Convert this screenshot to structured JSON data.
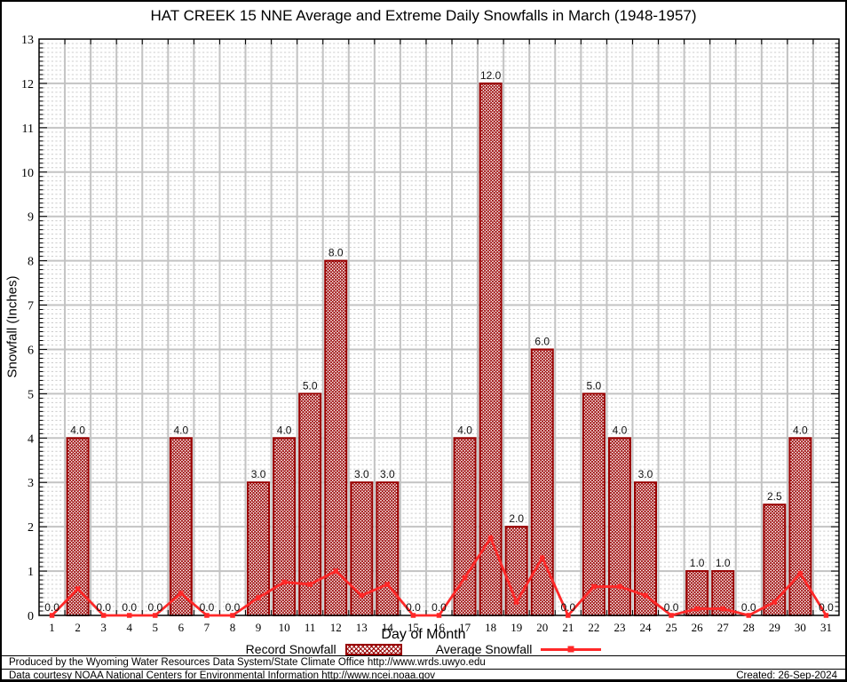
{
  "title": "HAT CREEK 15 NNE Average and Extreme Daily Snowfalls in March (1948-1957)",
  "chart_data": {
    "type": "bar",
    "title": "HAT CREEK 15 NNE Average and Extreme Daily Snowfalls in March (1948-1957)",
    "xlabel": "Day of Month",
    "ylabel": "Snowfall (Inches)",
    "ylim": [
      0,
      13
    ],
    "ytick_step": 1,
    "minor_step": 0.1,
    "grid": true,
    "legend_position": "bottom",
    "categories": [
      1,
      2,
      3,
      4,
      5,
      6,
      7,
      8,
      9,
      10,
      11,
      12,
      13,
      14,
      15,
      16,
      17,
      18,
      19,
      20,
      21,
      22,
      23,
      24,
      25,
      26,
      27,
      28,
      29,
      30,
      31
    ],
    "series": [
      {
        "name": "Record Snowfall",
        "type": "bar",
        "values": [
          0.0,
          4.0,
          0.0,
          0.0,
          0.0,
          4.0,
          0.0,
          0.0,
          3.0,
          4.0,
          5.0,
          8.0,
          3.0,
          3.0,
          0.0,
          0.0,
          4.0,
          12.0,
          2.0,
          6.0,
          0.0,
          5.0,
          4.0,
          3.0,
          0.0,
          1.0,
          1.0,
          0.0,
          2.5,
          4.0,
          0.0
        ]
      },
      {
        "name": "Average Snowfall",
        "type": "line",
        "values": [
          0.0,
          0.6,
          0.0,
          0.0,
          0.0,
          0.5,
          0.0,
          0.0,
          0.4,
          0.75,
          0.7,
          1.0,
          0.45,
          0.7,
          0.0,
          0.0,
          0.85,
          1.75,
          0.3,
          1.3,
          0.0,
          0.65,
          0.65,
          0.45,
          0.0,
          0.15,
          0.15,
          0.0,
          0.3,
          0.95,
          0.0
        ]
      }
    ]
  },
  "colors": {
    "bar": "#990000",
    "line": "#ff2828",
    "grid_major": "#c3c3c3",
    "grid_minor": "#cccccc",
    "axis": "#000000",
    "bar_label": "#111111"
  },
  "footer": {
    "line1": "Produced by the Wyoming Water Resources Data System/State Climate Office http://www.wrds.uwyo.edu",
    "line2": "Data courtesy NOAA National Centers for Environmental Information http://www.ncei.noaa.gov",
    "created": "Created: 26-Sep-2024"
  }
}
